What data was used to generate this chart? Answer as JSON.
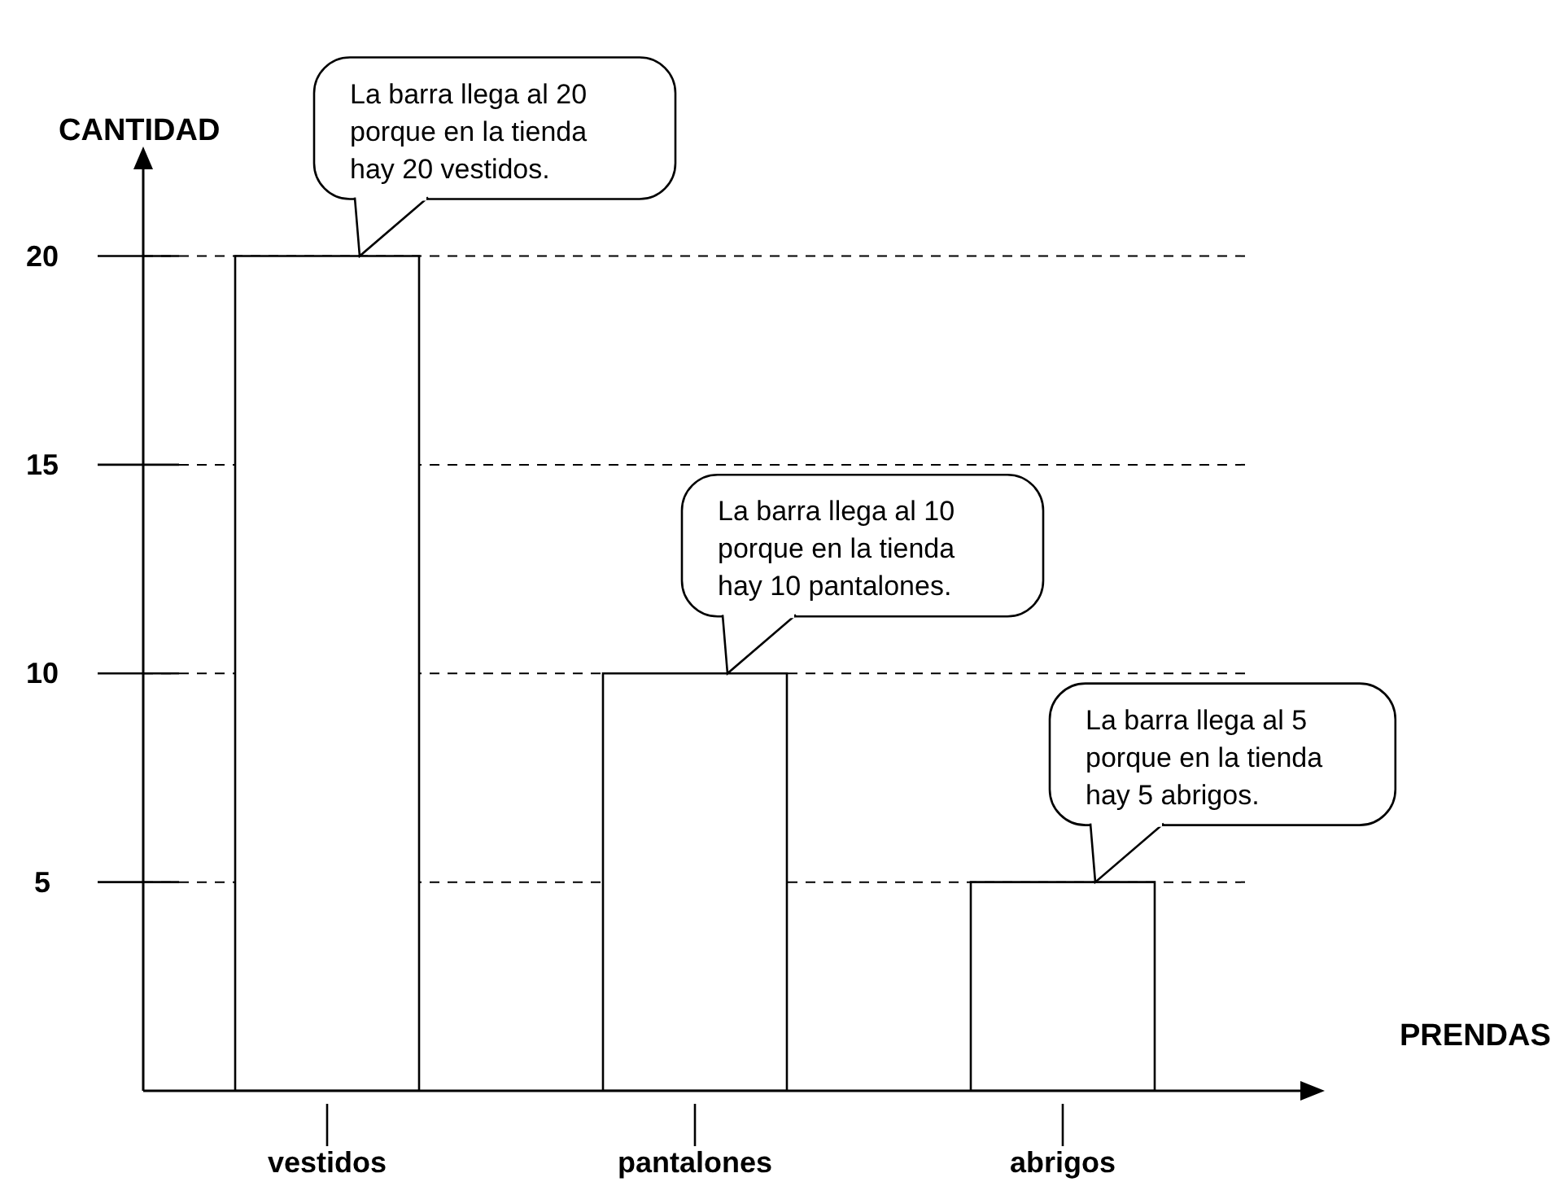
{
  "chart_data": {
    "type": "bar",
    "xlabel": "PRENDAS",
    "ylabel": "CANTIDAD",
    "categories": [
      "vestidos",
      "pantalones",
      "abrigos"
    ],
    "values": [
      20,
      10,
      5
    ],
    "color": "#ffffff",
    "ylim": [
      0,
      22
    ],
    "yticks": [
      5,
      10,
      15,
      20
    ],
    "grid": "y",
    "line_style": "dashed",
    "annotations": [
      {
        "text": "La barra llega al 20\nporque en la tienda\nhay 20 vestidos.",
        "x": "vestidos",
        "y": 20
      },
      {
        "text": "La barra llega al 10\nporque en la tienda\nhay 10 pantalones.",
        "x": "pantalones",
        "y": 10
      },
      {
        "text": "La barra llega al 5\nporque en la tienda\nhay 5 abrigos.",
        "x": "abrigos",
        "y": 5
      }
    ]
  }
}
